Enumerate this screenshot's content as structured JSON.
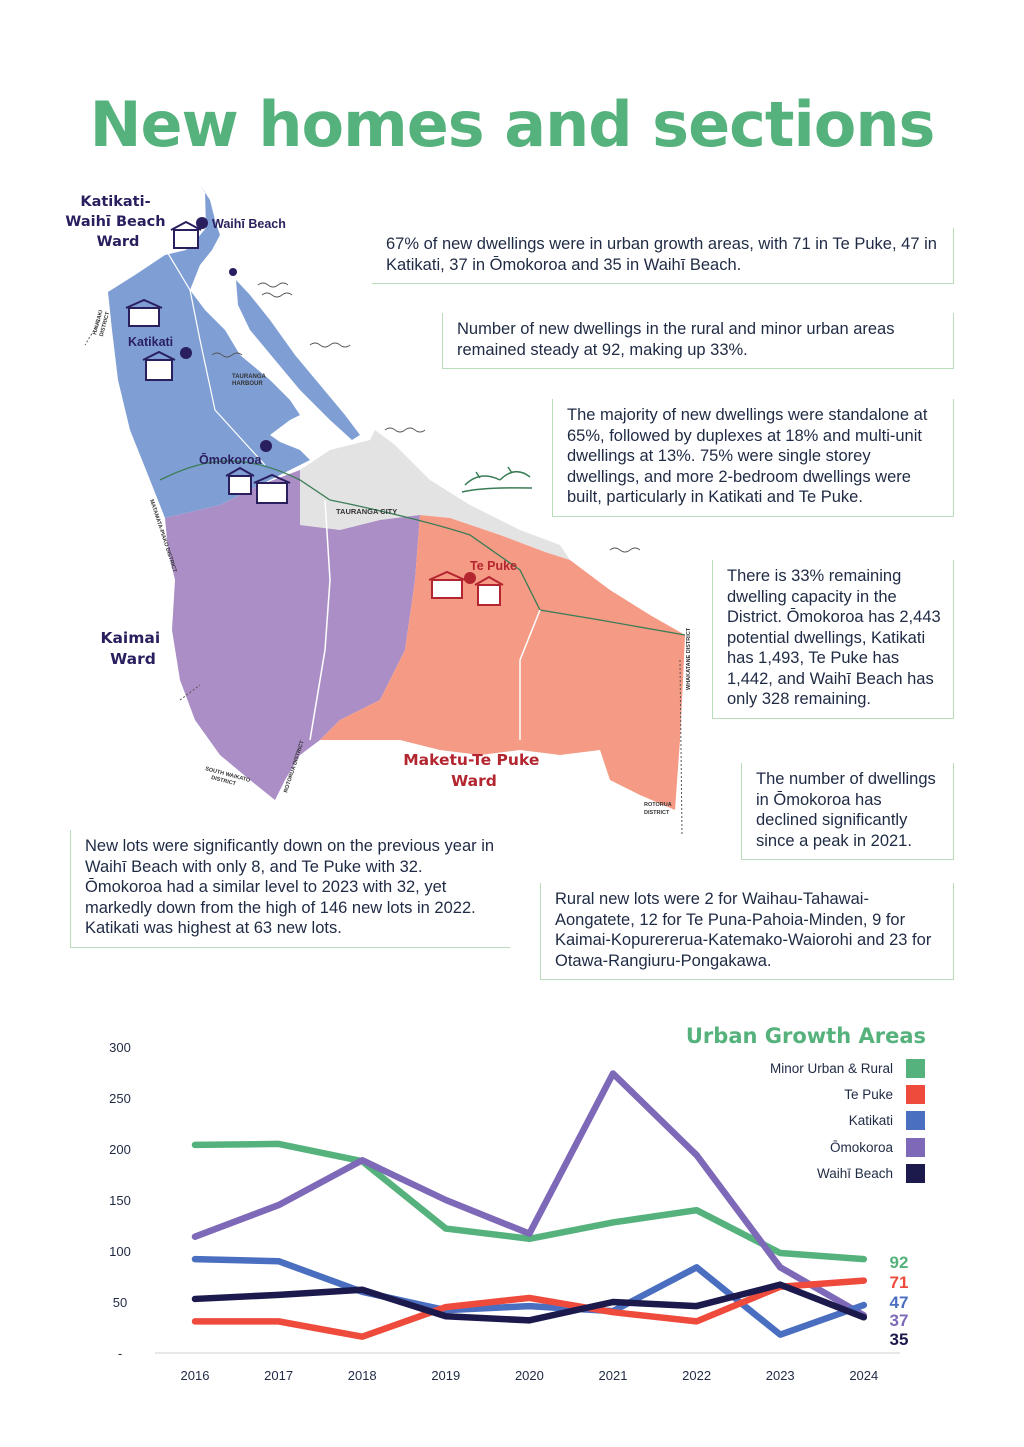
{
  "page": {
    "title": "New homes and sections"
  },
  "notes": {
    "urban_growth": "67% of new dwellings were in urban growth areas, with 71 in Te Puke, 47 in Katikati, 37 in Ōmokoroa and 35 in Waihī Beach.",
    "rural_minor": "Number of new dwellings in the rural and minor urban areas remained steady at 92, making up 33%.",
    "dwelling_types": "The majority of new dwellings were standalone at 65%, followed by duplexes at 18% and multi-unit dwellings at 13%. 75% were single storey dwellings, and more 2-bedroom dwellings were built, particularly in Katikati and Te Puke.",
    "capacity": "There is 33% remaining dwelling capacity in the District. Ōmokoroa has 2,443 potential dwellings, Katikati has 1,493, Te Puke has 1,442, and Waihī Beach has only 328 remaining.",
    "omokoroa_decline": "The number of dwellings in Ōmokoroa has declined significantly since a peak in 2021.",
    "new_lots": "New lots were significantly down on the previous year in Waihī Beach with only 8, and Te Puke with 32. Ōmokoroa had a similar level to 2023 with 32, yet markedly down from the high of 146 new lots in 2022. Katikati was highest at 63 new lots.",
    "rural_lots": "Rural new lots were 2 for Waihau-Tahawai-Aongatete, 12 for Te Puna-Pahoia-Minden, 9 for Kaimai-Kopurererua-Katemako-Waiorohi and 23 for Otawa-Rangiuru-Pongakawa."
  },
  "map": {
    "wards": {
      "katikati": "Katikati-\nWaihī Beach\nWard",
      "kaimai": "Kaimai\nWard",
      "maketu": "Maketu-Te Puke\nWard"
    },
    "towns": {
      "waihi_beach": "Waihī Beach",
      "katikati": "Katikati",
      "omokoroa": "Ōmokoroa",
      "te_puke": "Te Puke",
      "tauranga_city": "TAURANGA CITY",
      "tauranga_harbour": "TAURANGA\nHARBOUR"
    },
    "districts": {
      "hauraki": "HAURAKI\nDISTRICT",
      "matamata": "MATAMATA-PIAKO DISTRICT",
      "south_waikato": "SOUTH WAIKATO\nDISTRICT",
      "rotorua_west": "ROTORUA DISTRICT",
      "rotorua_east": "ROTORUA\nDISTRICT",
      "whakatane": "WHAKATANE DISTRICT"
    },
    "colors": {
      "katikati_ward": "#7f9fd4",
      "kaimai_ward": "#ab8ec6",
      "maketu_ward": "#f59a85",
      "city": "#e2e2e2",
      "label_dark": "#2a1f5e",
      "label_red": "#b3262f"
    }
  },
  "chart_data": {
    "type": "line",
    "title": "Urban Growth Areas",
    "x": [
      "2016",
      "2017",
      "2018",
      "2019",
      "2020",
      "2021",
      "2022",
      "2023",
      "2024"
    ],
    "yticks": [
      "300",
      "250",
      "200",
      "150",
      "100",
      "50",
      "-"
    ],
    "ylim": [
      0,
      300
    ],
    "legend_position": "top-right",
    "series": [
      {
        "name": "Minor Urban & Rural",
        "color": "#55b27c",
        "values": [
          204,
          205,
          188,
          122,
          112,
          128,
          140,
          98,
          92
        ],
        "end_label": "92"
      },
      {
        "name": "Te Puke",
        "color": "#ef4b3c",
        "values": [
          31,
          31,
          16,
          45,
          54,
          40,
          31,
          65,
          71
        ],
        "end_label": "71"
      },
      {
        "name": "Katikati",
        "color": "#4b6fc0",
        "values": [
          92,
          90,
          60,
          42,
          46,
          41,
          84,
          18,
          47
        ],
        "end_label": "47"
      },
      {
        "name": "Ōmokoroa",
        "color": "#7e68b8",
        "values": [
          114,
          145,
          189,
          150,
          117,
          274,
          194,
          84,
          37
        ],
        "end_label": "37"
      },
      {
        "name": "Waihī Beach",
        "color": "#1c1a4d",
        "values": [
          53,
          57,
          62,
          36,
          32,
          50,
          46,
          67,
          35
        ],
        "end_label": "35"
      }
    ]
  }
}
